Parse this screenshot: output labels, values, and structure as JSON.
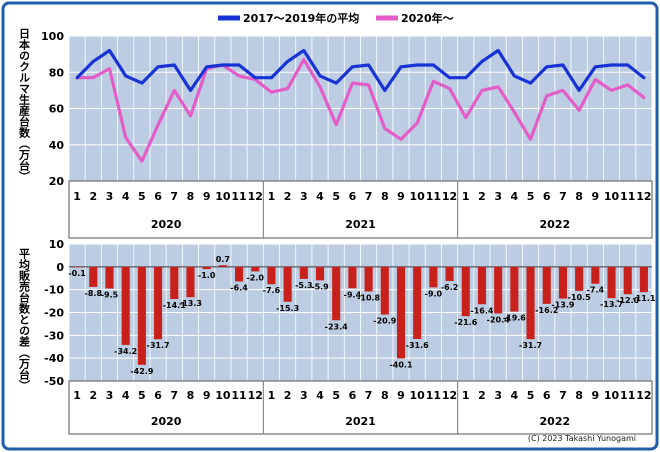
{
  "colors": {
    "border": "#1f5fa8",
    "plot_bg": "#bccde3",
    "grid": "#ffffff",
    "baseline_series": "#1733d6",
    "year2020_series": "#e45cc8",
    "bars": "#c8201b"
  },
  "legend": {
    "baseline_label": "2017～2019年の平均",
    "current_label": "2020年～"
  },
  "credit": "(C) 2023 Takashi Yunogami",
  "chart_data": [
    {
      "type": "line",
      "ylabel": "日本のクルマ生産台数（万台）",
      "ylim": [
        20,
        100
      ],
      "yticks": [
        20,
        40,
        60,
        80,
        100
      ],
      "grid": true,
      "legend_position": "top",
      "months": [
        "1",
        "2",
        "3",
        "4",
        "5",
        "6",
        "7",
        "8",
        "9",
        "10",
        "11",
        "12",
        "1",
        "2",
        "3",
        "4",
        "5",
        "6",
        "7",
        "8",
        "9",
        "10",
        "11",
        "12",
        "1",
        "2",
        "3",
        "4",
        "5",
        "6",
        "7",
        "8",
        "9",
        "10",
        "11",
        "12"
      ],
      "years": [
        "2020",
        "2021",
        "2022"
      ],
      "series": [
        {
          "name": "2017～2019年の平均",
          "values": [
            77,
            86,
            92,
            78,
            74,
            83,
            84,
            70,
            83,
            84,
            84,
            77,
            77,
            86,
            92,
            78,
            74,
            83,
            84,
            70,
            83,
            84,
            84,
            77,
            77,
            86,
            92,
            78,
            74,
            83,
            84,
            70,
            83,
            84,
            84,
            77
          ]
        },
        {
          "name": "2020年～",
          "values": [
            77,
            77,
            82,
            44,
            31,
            51,
            70,
            56,
            82,
            84,
            78,
            76,
            69,
            71,
            87,
            72,
            51,
            74,
            73,
            49,
            43,
            52,
            75,
            71,
            55,
            70,
            72,
            58,
            43,
            67,
            70,
            59,
            76,
            70,
            73,
            66
          ]
        }
      ]
    },
    {
      "type": "bar",
      "ylabel": "平均販売台数との差（万台）",
      "ylim": [
        -50,
        10
      ],
      "yticks": [
        10,
        0,
        -10,
        -20,
        -30,
        -40,
        -50
      ],
      "grid": true,
      "months": [
        "1",
        "2",
        "3",
        "4",
        "5",
        "6",
        "7",
        "8",
        "9",
        "10",
        "11",
        "12",
        "1",
        "2",
        "3",
        "4",
        "5",
        "6",
        "7",
        "8",
        "9",
        "10",
        "11",
        "12",
        "1",
        "2",
        "3",
        "4",
        "5",
        "6",
        "7",
        "8",
        "9",
        "10",
        "11",
        "12"
      ],
      "years": [
        "2020",
        "2021",
        "2022"
      ],
      "values": [
        -0.1,
        -8.8,
        -9.5,
        -34.2,
        -42.9,
        -31.7,
        -14.1,
        -13.3,
        -1.0,
        0.7,
        -6.4,
        -2.0,
        -7.6,
        -15.3,
        -5.3,
        -5.9,
        -23.4,
        -9.4,
        -10.8,
        -20.9,
        -40.1,
        -31.6,
        -9.0,
        -6.2,
        -21.6,
        -16.4,
        -20.4,
        -19.6,
        -31.7,
        -16.2,
        -13.9,
        -10.5,
        -7.4,
        -13.7,
        -12.0,
        -11.1
      ],
      "labels": [
        "-0.1",
        "-8.8",
        "-9.5",
        "-34.2",
        "-42.9",
        "-31.7",
        "-14.1",
        "-13.3",
        "-1.0",
        "0.7",
        "-6.4",
        "-2.0",
        "-7.6",
        "-15.3",
        "-5.3",
        "-5.9",
        "-23.4",
        "-9.4",
        "-10.8",
        "-20.9",
        "-40.1",
        "-31.6",
        "-9.0",
        "-6.2",
        "-21.6",
        "-16.4",
        "-20.4",
        "-19.6",
        "-31.7",
        "-16.2",
        "-13.9",
        "-10.5",
        "-7.4",
        "-13.7",
        "-12.0",
        "-11.1"
      ]
    }
  ]
}
